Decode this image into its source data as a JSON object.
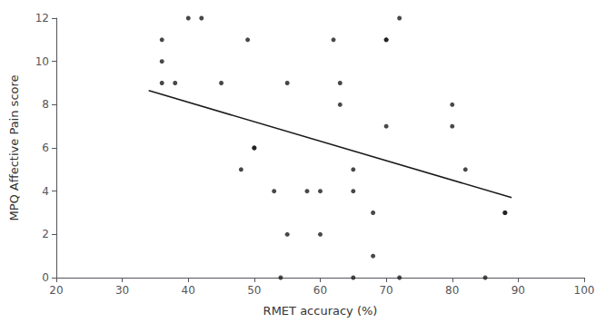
{
  "chart_data": {
    "type": "scatter",
    "xlabel": "RMET accuracy (%)",
    "ylabel": "MPQ Affective Pain score",
    "xlim": [
      20,
      100
    ],
    "ylim": [
      0,
      12
    ],
    "xticks": [
      20,
      30,
      40,
      50,
      60,
      70,
      80,
      90,
      100
    ],
    "yticks": [
      0,
      2,
      4,
      6,
      8,
      10,
      12
    ],
    "grid": false,
    "series": [
      {
        "type": "scatter",
        "color": "#1a1a1a",
        "x": [
          36,
          36,
          36,
          38,
          40,
          42,
          45,
          48,
          49,
          50,
          50,
          53,
          54,
          55,
          55,
          58,
          60,
          60,
          62,
          63,
          63,
          65,
          65,
          65,
          68,
          68,
          70,
          70,
          70,
          72,
          72,
          80,
          80,
          82,
          85,
          88,
          88
        ],
        "values": [
          9,
          11,
          10,
          9,
          12,
          12,
          9,
          5,
          11,
          6,
          6,
          4,
          0,
          2,
          9,
          4,
          4,
          2,
          11,
          8,
          9,
          5,
          4,
          0,
          3,
          1,
          11,
          11,
          7,
          0,
          12,
          8,
          7,
          5,
          0,
          3,
          3
        ]
      },
      {
        "type": "line",
        "color": "#1a1a1a",
        "x": [
          34,
          89
        ],
        "values": [
          8.65,
          3.7
        ]
      }
    ]
  }
}
